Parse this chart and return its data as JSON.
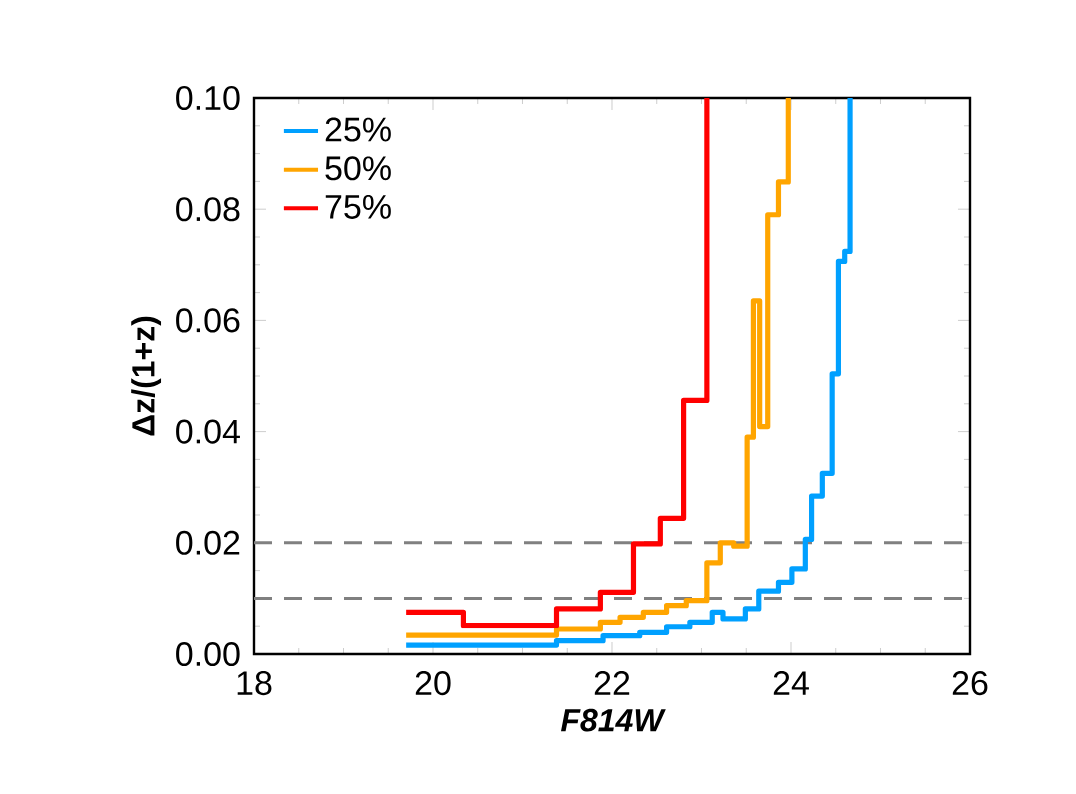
{
  "chart_data": {
    "type": "step",
    "xlabel": "F814W",
    "ylabel": "Δz/(1+z)",
    "xlim": [
      18,
      26
    ],
    "ylim": [
      0,
      0.1
    ],
    "xticks": [
      18,
      20,
      22,
      24,
      26
    ],
    "yticks": [
      {
        "value": 0,
        "label": "0.00"
      },
      {
        "value": 0.02,
        "label": "0.02"
      },
      {
        "value": 0.04,
        "label": "0.04"
      },
      {
        "value": 0.06,
        "label": "0.06"
      },
      {
        "value": 0.08,
        "label": "0.08"
      },
      {
        "value": 0.1,
        "label": "0.10"
      }
    ],
    "legend": "top left",
    "grid": false,
    "series": [
      {
        "name": "25%",
        "color": "#00a0ff",
        "x": [
          19.7,
          21.38,
          21.9,
          22.31,
          22.61,
          22.87,
          23.12,
          23.24,
          23.49,
          23.64,
          23.86,
          24.01,
          24.16,
          24.23,
          24.35,
          24.46,
          24.53,
          24.6,
          24.66
        ],
        "values": [
          0.0016,
          0.0024,
          0.0033,
          0.0039,
          0.0049,
          0.0057,
          0.0075,
          0.0063,
          0.0081,
          0.0113,
          0.0129,
          0.0153,
          0.0206,
          0.0284,
          0.0325,
          0.0504,
          0.0706,
          0.0724,
          0.1
        ]
      },
      {
        "name": "50%",
        "color": "#ffa500",
        "x": [
          19.7,
          21.38,
          21.87,
          22.09,
          22.35,
          22.61,
          22.83,
          23.06,
          23.21,
          23.36,
          23.51,
          23.58,
          23.65,
          23.74,
          23.86,
          23.97
        ],
        "values": [
          0.0034,
          0.0045,
          0.0057,
          0.0066,
          0.0075,
          0.0087,
          0.0096,
          0.0164,
          0.02,
          0.0194,
          0.039,
          0.0635,
          0.0409,
          0.079,
          0.0849,
          0.1
        ]
      },
      {
        "name": "75%",
        "color": "#ff0000",
        "x": [
          19.7,
          20.34,
          21.38,
          21.87,
          22.24,
          22.54,
          22.8,
          23.06
        ],
        "values": [
          0.0075,
          0.0051,
          0.0081,
          0.0111,
          0.0198,
          0.0244,
          0.0456,
          0.1
        ]
      }
    ],
    "ref_lines": [
      {
        "axis": "y",
        "value": 0.01,
        "color": "#808080",
        "line_style": "dashed"
      },
      {
        "axis": "y",
        "value": 0.02,
        "color": "#808080",
        "line_style": "dashed"
      }
    ]
  }
}
